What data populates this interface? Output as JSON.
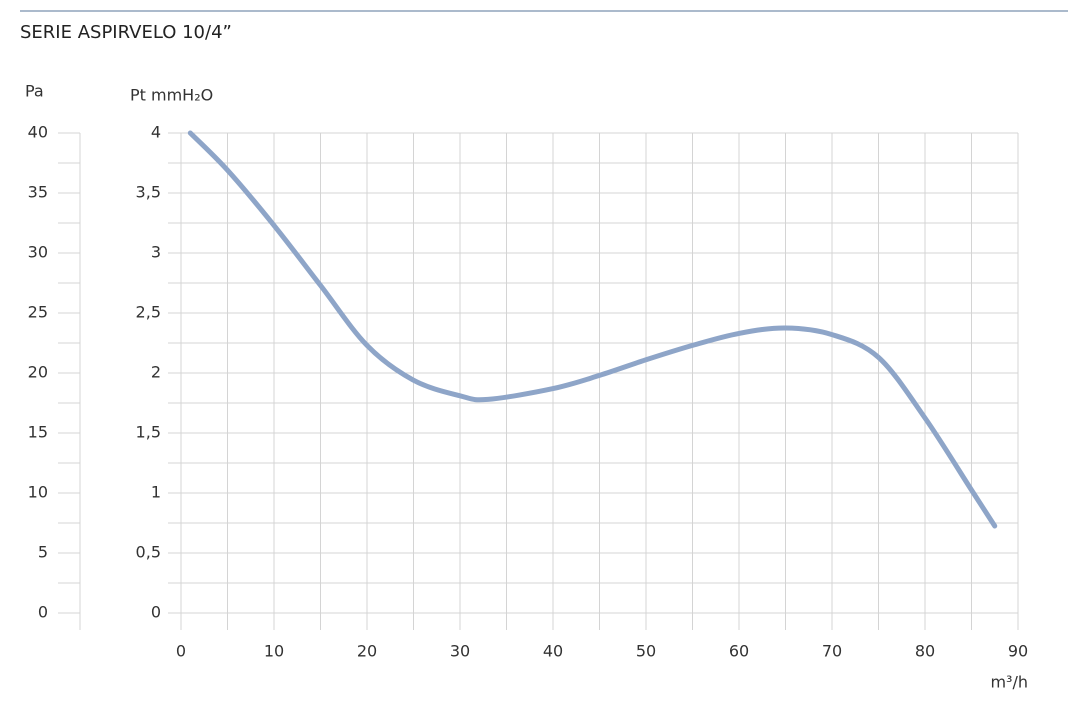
{
  "chart_data": {
    "type": "line",
    "title": "SERIE ASPIRVELO 10/4”",
    "y_label": "Pa",
    "y2_label": "Pt mmH₂O",
    "x_label": "m³/h",
    "x": [
      1,
      5,
      10,
      15,
      20,
      25,
      30,
      33,
      40,
      45,
      50,
      55,
      60,
      65,
      70,
      75,
      80,
      85,
      87.5
    ],
    "series": [
      {
        "name": "Pt",
        "color": "#8ea5c8",
        "values": [
          40,
          36.9,
          32.3,
          27.3,
          22.3,
          19.4,
          18.1,
          17.8,
          18.7,
          19.8,
          21.1,
          22.3,
          23.3,
          23.75,
          23.2,
          21.3,
          16.25,
          10.25,
          7.25
        ]
      }
    ],
    "xlim": [
      0,
      90
    ],
    "xticks": [
      0,
      10,
      20,
      30,
      40,
      50,
      60,
      70,
      80,
      90
    ],
    "ylim": [
      0,
      40
    ],
    "yticks": [
      0,
      5,
      10,
      15,
      20,
      25,
      30,
      35,
      40
    ],
    "y2lim": [
      0,
      4
    ],
    "y2ticks": [
      0,
      {
        "value": 0.5,
        "label": "0,5"
      },
      1,
      {
        "value": 1.5,
        "label": "1,5"
      },
      2,
      {
        "value": 2.5,
        "label": "2,5"
      },
      3,
      {
        "value": 3.5,
        "label": "3,5"
      },
      4
    ],
    "grid": true
  }
}
